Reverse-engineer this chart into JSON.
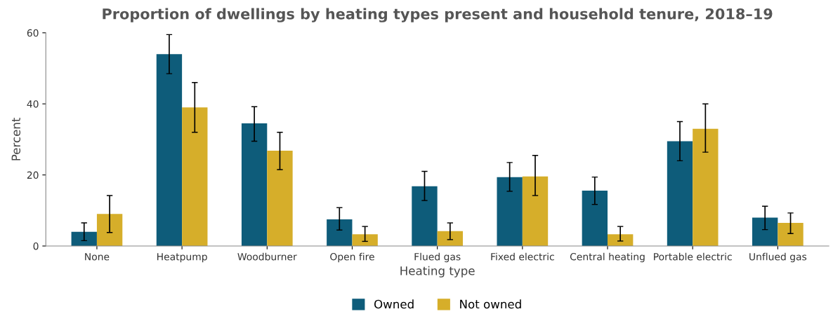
{
  "chart_data": {
    "type": "bar",
    "title": "Proportion of dwellings by heating types present and household tenure, 2018–19",
    "xlabel": "Heating type",
    "ylabel": "Percent",
    "categories": [
      "None",
      "Heatpump",
      "Woodburner",
      "Open fire",
      "Flued gas",
      "Fixed electric",
      "Central heating",
      "Portable electric",
      "Unflued gas"
    ],
    "series": [
      {
        "name": "Owned",
        "color": "#0e5c7a",
        "values": [
          4.0,
          54.0,
          34.5,
          7.5,
          16.8,
          19.4,
          15.6,
          29.5,
          8.0
        ],
        "errors": [
          [
            1.5,
            6.5
          ],
          [
            48.5,
            59.5
          ],
          [
            29.5,
            39.2
          ],
          [
            4.5,
            10.8
          ],
          [
            12.8,
            21.0
          ],
          [
            15.4,
            23.5
          ],
          [
            11.7,
            19.4
          ],
          [
            24.0,
            35.0
          ],
          [
            4.6,
            11.2
          ]
        ]
      },
      {
        "name": "Not owned",
        "color": "#d6ae2a",
        "values": [
          9.0,
          39.0,
          26.8,
          3.3,
          4.2,
          19.6,
          3.3,
          33.0,
          6.5
        ],
        "errors": [
          [
            3.8,
            14.2
          ],
          [
            32.0,
            46.0
          ],
          [
            21.5,
            32.0
          ],
          [
            1.3,
            5.5
          ],
          [
            1.8,
            6.5
          ],
          [
            14.2,
            25.5
          ],
          [
            1.4,
            5.5
          ],
          [
            26.4,
            40.0
          ],
          [
            3.5,
            9.3
          ]
        ]
      }
    ],
    "ylim": [
      0,
      60
    ],
    "yticks": [
      0,
      20,
      40,
      60
    ],
    "grid": false,
    "legend": "bottom"
  }
}
